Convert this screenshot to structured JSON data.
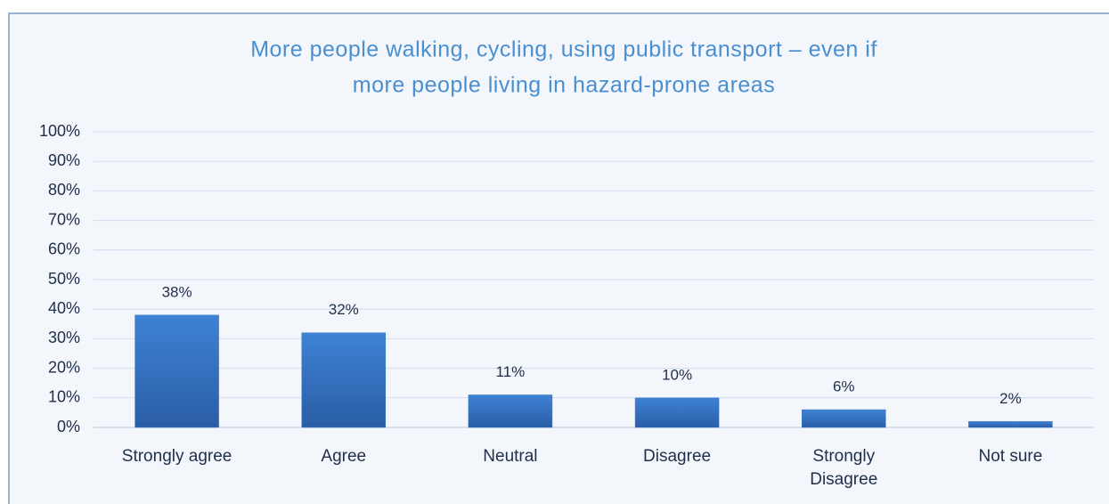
{
  "chart_data": {
    "type": "bar",
    "title": [
      "More people walking, cycling, using public transport – even if",
      "more people living in hazard-prone areas"
    ],
    "categories": [
      "Strongly agree",
      "Agree",
      "Neutral",
      "Disagree",
      "Strongly Disagree",
      "Not sure"
    ],
    "values": [
      38,
      32,
      11,
      10,
      6,
      2
    ],
    "value_labels": [
      "38%",
      "32%",
      "11%",
      "10%",
      "6%",
      "2%"
    ],
    "color": "#3a78c8",
    "ylim": [
      0,
      100
    ],
    "yticks": [
      {
        "value": 0,
        "label": "0%"
      },
      {
        "value": 10,
        "label": "10%"
      },
      {
        "value": 20,
        "label": "20%"
      },
      {
        "value": 30,
        "label": "30%"
      },
      {
        "value": 40,
        "label": "40%"
      },
      {
        "value": 50,
        "label": "50%"
      },
      {
        "value": 60,
        "label": "60%"
      },
      {
        "value": 70,
        "label": "70%"
      },
      {
        "value": 80,
        "label": "80%"
      },
      {
        "value": 90,
        "label": "90%"
      },
      {
        "value": 100,
        "label": "100%"
      }
    ],
    "grid": true
  }
}
